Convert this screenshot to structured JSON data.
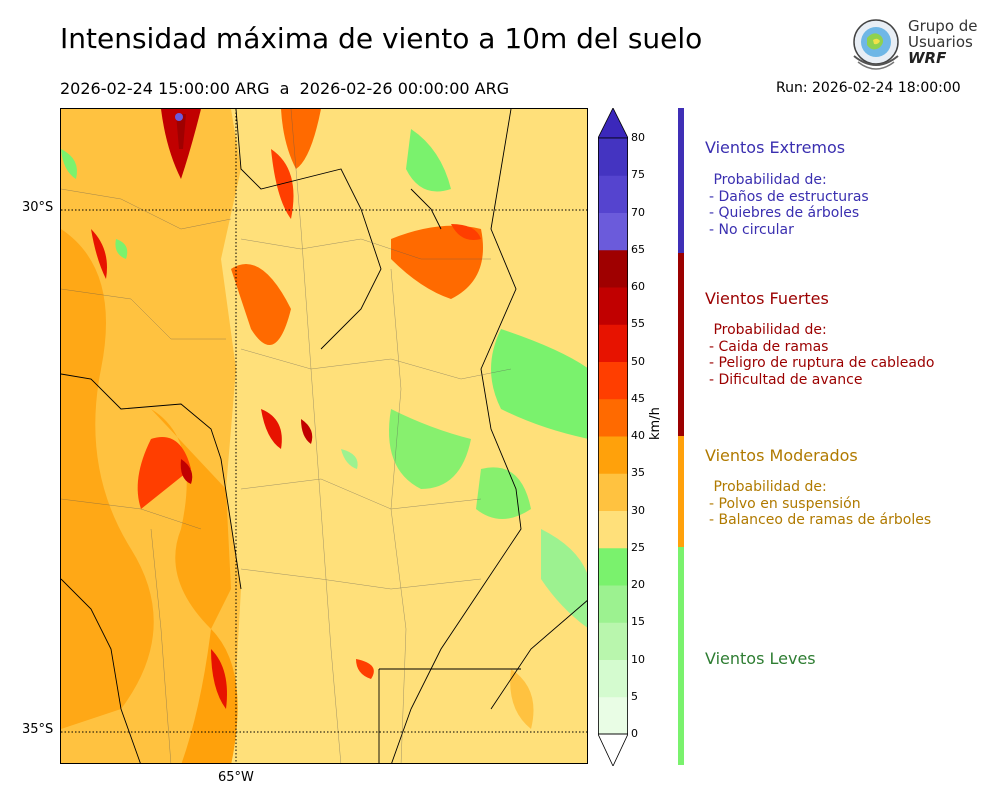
{
  "header": {
    "title": "Intensidad máxima de viento a 10m del suelo",
    "period": "2026-02-24 15:00:00 ARG  a  2026-02-26 00:00:00 ARG",
    "run": "Run: 2026-02-24 18:00:00"
  },
  "logo": {
    "line1": "Grupo de",
    "line2": "Usuarios",
    "line3": "WRF"
  },
  "map": {
    "lat_labels": [
      "30°S",
      "35°S"
    ],
    "lon_labels": [
      "65°W"
    ]
  },
  "colorbar": {
    "unit": "km/h",
    "ticks": [
      "0",
      "5",
      "10",
      "15",
      "20",
      "25",
      "30",
      "35",
      "40",
      "45",
      "50",
      "55",
      "60",
      "65",
      "70",
      "75",
      "80"
    ],
    "colors": [
      "#e9fde5",
      "#d4fbcf",
      "#b9f6ad",
      "#9cf290",
      "#7af26d",
      "#ffe07a",
      "#ffc240",
      "#ffa10b",
      "#ff6a00",
      "#ff3e00",
      "#e71300",
      "#c10000",
      "#9f0000",
      "#6b5bdb",
      "#5544cf",
      "#4434c1"
    ],
    "extend_max_color": "#3b28bb",
    "extend_min_color": "#ffffff"
  },
  "categories": [
    {
      "title": "Vientos Extremos",
      "color": "#3a2fb0",
      "desc": [
        " Probabilidad de:",
        "- Daños de estructuras",
        "- Quiebres de árboles",
        "- No circular"
      ]
    },
    {
      "title": "Vientos Fuertes",
      "color": "#9b0000",
      "desc": [
        " Probabilidad de:",
        "- Caida de ramas",
        "- Peligro de ruptura de cableado",
        "- Dificultad de avance"
      ]
    },
    {
      "title": "Vientos Moderados",
      "color": "#b07a00",
      "desc": [
        " Probabilidad de:",
        "- Polvo en suspensión",
        "- Balanceo de ramas de árboles"
      ]
    },
    {
      "title": "Vientos Leves",
      "color": "#2e7d32",
      "desc": []
    }
  ]
}
